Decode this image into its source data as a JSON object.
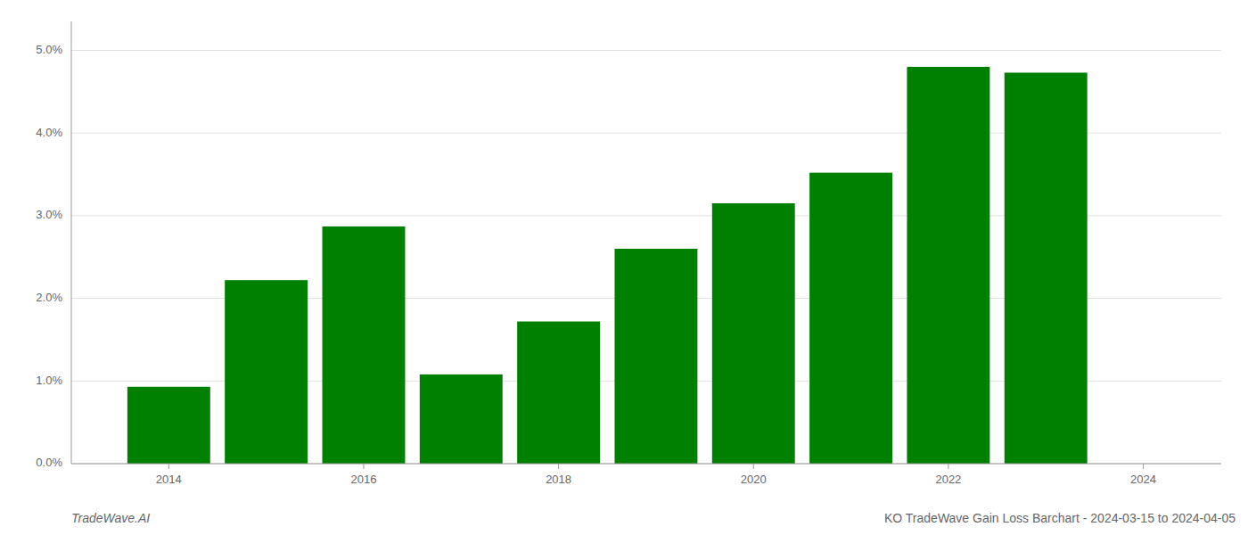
{
  "chart_data": {
    "type": "bar",
    "title": "KO TradeWave Gain Loss Barchart - 2024-03-15 to 2024-04-05",
    "annotations": [
      "TradeWave.AI"
    ],
    "x": [
      2014,
      2015,
      2016,
      2017,
      2018,
      2019,
      2020,
      2021,
      2022,
      2023
    ],
    "values": [
      0.0093,
      0.0222,
      0.0287,
      0.0108,
      0.0172,
      0.026,
      0.0315,
      0.0352,
      0.048,
      0.0473
    ],
    "color": "#008000",
    "xlim": [
      2013.0,
      2024.8
    ],
    "xticks": [
      2014,
      2016,
      2018,
      2020,
      2022,
      2024
    ],
    "ylim": [
      0,
      0.0535
    ],
    "yticks": [
      {
        "value": 0.0,
        "label": "0.0%"
      },
      {
        "value": 0.01,
        "label": "1.0%"
      },
      {
        "value": 0.02,
        "label": "2.0%"
      },
      {
        "value": 0.03,
        "label": "3.0%"
      },
      {
        "value": 0.04,
        "label": "4.0%"
      },
      {
        "value": 0.05,
        "label": "5.0%"
      }
    ],
    "grid": true
  }
}
